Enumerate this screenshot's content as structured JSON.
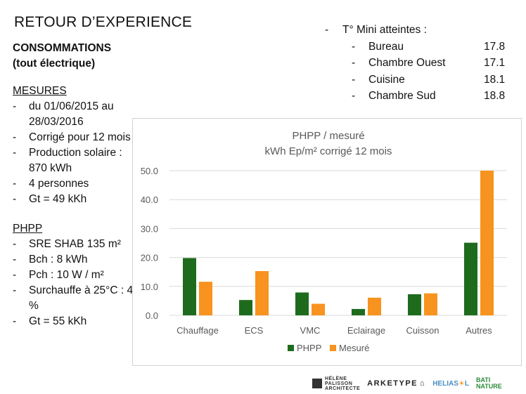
{
  "title": "RETOUR D’EXPERIENCE",
  "left": {
    "heading1": "CONSOMMATIONS",
    "heading2": "(tout électrique)",
    "mesures_title": "MESURES",
    "mesures": [
      "du 01/06/2015 au 28/03/2016",
      "Corrigé pour 12 mois",
      "Production solaire : 870 kWh",
      "4 personnes",
      "Gt = 49 kKh"
    ],
    "phpp_title": "PHPP",
    "phpp": [
      "SRE SHAB 135 m²",
      "Bch : 8 kWh",
      "Pch : 10 W / m²",
      "Surchauffe à 25°C : 4 %",
      "Gt = 55 kKh"
    ]
  },
  "temps": {
    "heading": "T° Mini atteintes :",
    "rows": [
      {
        "name": "Bureau",
        "value": "17.8"
      },
      {
        "name": "Chambre Ouest",
        "value": "17.1"
      },
      {
        "name": "Cuisine",
        "value": "18.1"
      },
      {
        "name": "Chambre Sud",
        "value": "18.8"
      }
    ]
  },
  "logos": {
    "helene": "HÉLÈNE",
    "palisson": "PALISSON",
    "architecte": "ARCHITECTE",
    "arketype": "ARKETYPE",
    "heliasol_a": "HELIA",
    "heliasol_b": "S",
    "heliasol_c": "L",
    "bati": "BATI NATURE"
  },
  "chart_data": {
    "type": "bar",
    "title": "PHPP / mesuré",
    "subtitle": "kWh Ep/m² corrigé 12 mois",
    "categories": [
      "Chauffage",
      "ECS",
      "VMC",
      "Eclairage",
      "Cuisson",
      "Autres"
    ],
    "series": [
      {
        "name": "PHPP",
        "color": "#1e6b1e",
        "values": [
          19.8,
          5.3,
          7.9,
          2.2,
          7.3,
          25.1
        ]
      },
      {
        "name": "Mesuré",
        "color": "#f7931e",
        "values": [
          11.6,
          15.3,
          4.0,
          6.1,
          7.6,
          50.0
        ]
      }
    ],
    "yticks": [
      "0.0",
      "10.0",
      "20.0",
      "30.0",
      "40.0",
      "50.0"
    ],
    "ylim": [
      0,
      50
    ],
    "legend_position": "bottom",
    "grid": true
  }
}
